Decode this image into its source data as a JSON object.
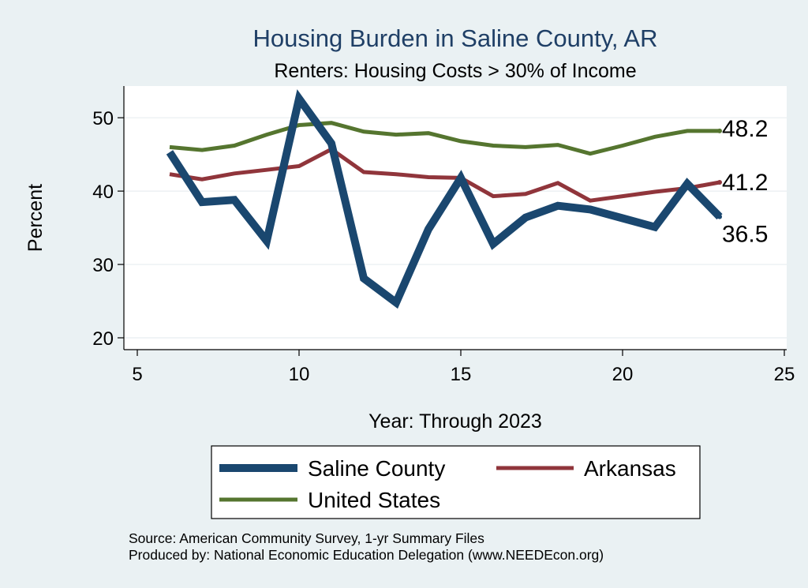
{
  "chart_data": {
    "type": "line",
    "title": "Housing Burden in Saline County, AR",
    "subtitle": "Renters: Housing Costs > 30% of Income",
    "xlabel": "Year: Through 2023",
    "ylabel": "Percent",
    "xlim": [
      5,
      25
    ],
    "ylim": [
      20,
      54
    ],
    "xticks": [
      "5",
      "10",
      "15",
      "20",
      "25"
    ],
    "yticks": [
      "20",
      "30",
      "40",
      "50"
    ],
    "grid": true,
    "legend_position": "bottom",
    "series": [
      {
        "name": "Saline County",
        "color": "#1a476f",
        "x": [
          6,
          7,
          8,
          9,
          10,
          11,
          12,
          13,
          14,
          15,
          16,
          17,
          18,
          19,
          20,
          21,
          22,
          23
        ],
        "y": [
          45.3,
          38.5,
          38.8,
          33.2,
          52.6,
          46.5,
          28.1,
          24.8,
          34.8,
          41.8,
          32.8,
          36.4,
          38.0,
          37.5,
          36.3,
          35.1,
          41.0,
          36.5
        ],
        "end_label": "36.5"
      },
      {
        "name": "Arkansas",
        "color": "#90353b",
        "x": [
          6,
          7,
          8,
          9,
          10,
          11,
          12,
          13,
          14,
          15,
          16,
          17,
          18,
          19,
          20,
          21,
          22,
          23
        ],
        "y": [
          42.3,
          41.6,
          42.4,
          42.9,
          43.4,
          45.7,
          42.6,
          42.3,
          41.9,
          41.8,
          39.3,
          39.6,
          41.1,
          38.7,
          39.3,
          39.9,
          40.4,
          41.2
        ],
        "end_label": "41.2"
      },
      {
        "name": "United States",
        "color": "#55752f",
        "x": [
          6,
          7,
          8,
          9,
          10,
          11,
          12,
          13,
          14,
          15,
          16,
          17,
          18,
          19,
          20,
          21,
          22,
          23
        ],
        "y": [
          46.0,
          45.6,
          46.2,
          47.7,
          49.0,
          49.3,
          48.1,
          47.7,
          47.9,
          46.8,
          46.2,
          46.0,
          46.3,
          45.1,
          46.2,
          47.4,
          48.2,
          48.2
        ],
        "end_label": "48.2"
      }
    ],
    "notes": [
      "Source: American Community Survey, 1-yr Summary Files",
      "Produced by: National Economic Education Delegation (www.NEEDEcon.org)"
    ]
  }
}
